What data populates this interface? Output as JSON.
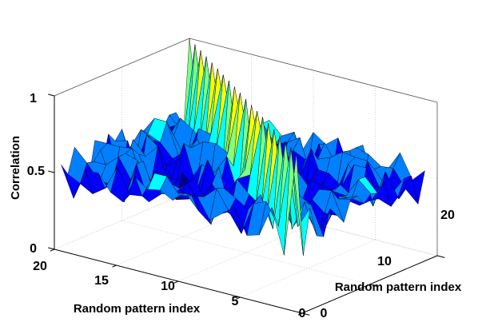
{
  "chart_data": {
    "type": "surface",
    "title": "",
    "xlabel": "Random pattern index",
    "ylabel": "Random pattern index",
    "zlabel": "Correlation",
    "x_ticks": [
      "0",
      "5",
      "10",
      "15",
      "20"
    ],
    "y_ticks": [
      "0",
      "10",
      "20"
    ],
    "z_ticks": [
      "0",
      "0.5",
      "1"
    ],
    "xlim": [
      0,
      20
    ],
    "ylim": [
      0,
      20
    ],
    "zlim": [
      0,
      1
    ],
    "grid": true,
    "colormap": [
      "#00008f",
      "#0000ff",
      "#0080ff",
      "#00ffff",
      "#80ff80",
      "#ffff00",
      "#ff8000",
      "#ff0000",
      "#800000"
    ],
    "description_of_values": "Autocorrelation matrix of 20 random patterns: diagonal entries equal 1, off-diagonal entries fluctuate around 0.5 (roughly 0.3 to 0.65).",
    "diagonal_value": 1,
    "offdiagonal_mean": 0.5,
    "offdiagonal_range": [
      0.3,
      0.65
    ]
  }
}
